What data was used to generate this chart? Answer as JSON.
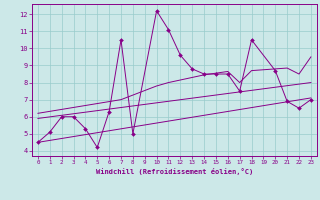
{
  "xlabel": "Windchill (Refroidissement éolien,°C)",
  "bg_color": "#cce8e8",
  "grid_color": "#99cccc",
  "line_color": "#880088",
  "xlim": [
    -0.5,
    23.5
  ],
  "ylim": [
    3.7,
    12.6
  ],
  "xticks": [
    0,
    1,
    2,
    3,
    4,
    5,
    6,
    7,
    8,
    9,
    10,
    11,
    12,
    13,
    14,
    15,
    16,
    17,
    18,
    19,
    20,
    21,
    22,
    23
  ],
  "yticks": [
    4,
    5,
    6,
    7,
    8,
    9,
    10,
    11,
    12
  ],
  "jagged_x": [
    0,
    1,
    2,
    3,
    4,
    5,
    6,
    7,
    8,
    10,
    11,
    12,
    13,
    14,
    15,
    16,
    17,
    18,
    20,
    21,
    22,
    23
  ],
  "jagged_y": [
    4.5,
    5.1,
    6.0,
    6.0,
    5.3,
    4.2,
    6.3,
    10.5,
    5.0,
    12.2,
    11.1,
    9.6,
    8.8,
    8.5,
    8.5,
    8.5,
    7.5,
    10.5,
    8.7,
    6.9,
    6.5,
    7.0
  ],
  "smooth1_x": [
    0,
    7,
    10,
    11,
    12,
    13,
    14,
    15,
    16,
    17,
    18,
    19,
    20,
    21,
    22,
    23
  ],
  "smooth1_y": [
    6.2,
    7.0,
    7.8,
    8.0,
    8.15,
    8.3,
    8.45,
    8.55,
    8.65,
    8.0,
    8.7,
    8.75,
    8.8,
    8.85,
    8.5,
    9.5
  ],
  "trend1_x": [
    0,
    23
  ],
  "trend1_y": [
    4.5,
    7.1
  ],
  "trend2_x": [
    0,
    23
  ],
  "trend2_y": [
    5.9,
    8.0
  ]
}
